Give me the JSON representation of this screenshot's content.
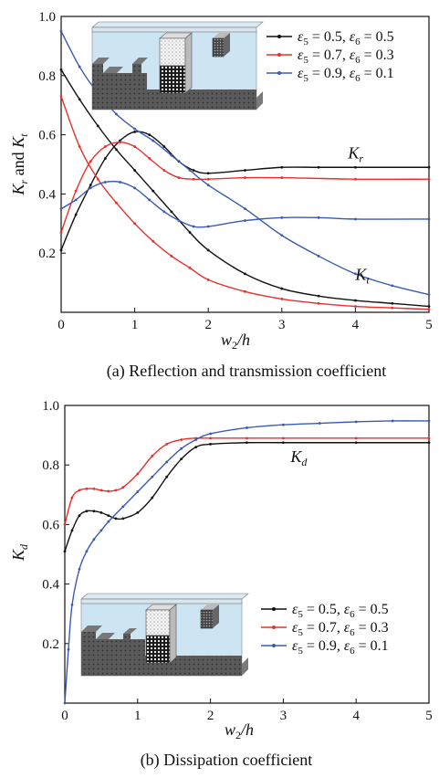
{
  "colors": {
    "black": "#111111",
    "red": "#e8302a",
    "blue": "#3a5bb3"
  },
  "chart_data": [
    {
      "type": "line",
      "caption": "(a) Reflection and transmission coefficient",
      "xlabel": {
        "main": "w",
        "sub": "2",
        "rest": "/h"
      },
      "ylabel": {
        "k1": "K",
        "s1": "r",
        "mid": " and ",
        "k2": "K",
        "s2": "t"
      },
      "xlim": [
        0,
        5
      ],
      "ylim": [
        0,
        1.0
      ],
      "xticks": [
        0,
        1,
        2,
        3,
        4,
        5
      ],
      "yticks": [
        0.2,
        0.4,
        0.6,
        0.8,
        1.0
      ],
      "xtick_labels": [
        "0",
        "1",
        "2",
        "3",
        "4",
        "5"
      ],
      "ytick_labels": [
        "0.2",
        "0.4",
        "0.6",
        "0.8",
        "1.0"
      ],
      "grid": false,
      "legend_position": "top-right",
      "annotations": [
        {
          "text": "K",
          "sub": "r",
          "x": 3.9,
          "y": 0.52
        },
        {
          "text": "K",
          "sub": "t",
          "x": 4.0,
          "y": 0.11
        }
      ],
      "series": [
        {
          "name": "ε5 = 0.5,  ε6 = 0.5",
          "legend": {
            "a": "ε",
            "a_sub": "5",
            "a_val": " = 0.5,  ",
            "b": "ε",
            "b_sub": "6",
            "b_val": " = 0.5"
          },
          "color": "black",
          "group": "Kr",
          "x": [
            0,
            0.2,
            0.4,
            0.6,
            0.8,
            1.0,
            1.2,
            1.4,
            1.6,
            1.8,
            2.0,
            2.5,
            3.0,
            3.5,
            4.0,
            5.0
          ],
          "y": [
            0.21,
            0.33,
            0.43,
            0.52,
            0.58,
            0.61,
            0.6,
            0.56,
            0.51,
            0.48,
            0.47,
            0.48,
            0.49,
            0.49,
            0.49,
            0.49
          ]
        },
        {
          "name": "ε5 = 0.5,  ε6 = 0.5",
          "color": "black",
          "group": "Kt",
          "x": [
            0,
            0.25,
            0.5,
            0.75,
            1.0,
            1.25,
            1.5,
            1.75,
            2.0,
            2.5,
            3.0,
            3.5,
            4.0,
            4.5,
            5.0
          ],
          "y": [
            0.82,
            0.72,
            0.63,
            0.55,
            0.48,
            0.41,
            0.34,
            0.27,
            0.21,
            0.13,
            0.08,
            0.055,
            0.04,
            0.03,
            0.02
          ]
        },
        {
          "name": "ε5 = 0.7,  ε6 = 0.3",
          "legend": {
            "a": "ε",
            "a_sub": "5",
            "a_val": " = 0.7,  ",
            "b": "ε",
            "b_sub": "6",
            "b_val": " = 0.3"
          },
          "color": "red",
          "group": "Kr",
          "x": [
            0,
            0.2,
            0.4,
            0.6,
            0.8,
            1.0,
            1.2,
            1.4,
            1.6,
            1.8,
            2.0,
            2.5,
            3.0,
            4.0,
            5.0
          ],
          "y": [
            0.27,
            0.41,
            0.51,
            0.56,
            0.575,
            0.56,
            0.52,
            0.48,
            0.455,
            0.45,
            0.45,
            0.455,
            0.455,
            0.45,
            0.45
          ]
        },
        {
          "name": "ε5 = 0.7,  ε6 = 0.3",
          "color": "red",
          "group": "Kt",
          "x": [
            0,
            0.25,
            0.5,
            0.75,
            1.0,
            1.25,
            1.5,
            1.75,
            2.0,
            2.5,
            3.0,
            3.5,
            4.0,
            4.5,
            5.0
          ],
          "y": [
            0.73,
            0.56,
            0.45,
            0.37,
            0.3,
            0.24,
            0.19,
            0.15,
            0.11,
            0.07,
            0.045,
            0.03,
            0.02,
            0.015,
            0.01
          ]
        },
        {
          "name": "ε5 = 0.9,  ε6 = 0.1",
          "legend": {
            "a": "ε",
            "a_sub": "5",
            "a_val": " = 0.9,  ",
            "b": "ε",
            "b_sub": "6",
            "b_val": " = 0.1"
          },
          "color": "blue",
          "group": "Kr",
          "x": [
            0,
            0.2,
            0.4,
            0.6,
            0.8,
            1.0,
            1.2,
            1.4,
            1.6,
            1.8,
            2.0,
            2.5,
            3.0,
            3.5,
            4.0,
            5.0
          ],
          "y": [
            0.35,
            0.38,
            0.42,
            0.44,
            0.44,
            0.42,
            0.38,
            0.34,
            0.31,
            0.29,
            0.29,
            0.31,
            0.32,
            0.32,
            0.315,
            0.315
          ]
        },
        {
          "name": "ε5 = 0.9,  ε6 = 0.1",
          "color": "blue",
          "group": "Kt",
          "x": [
            0,
            0.25,
            0.5,
            0.75,
            1.0,
            1.25,
            1.5,
            1.75,
            2.0,
            2.5,
            3.0,
            3.5,
            4.0,
            4.5,
            5.0
          ],
          "y": [
            0.95,
            0.83,
            0.74,
            0.67,
            0.62,
            0.58,
            0.53,
            0.48,
            0.43,
            0.35,
            0.26,
            0.19,
            0.13,
            0.09,
            0.06
          ]
        }
      ]
    },
    {
      "type": "line",
      "caption": "(b) Dissipation coefficient",
      "xlabel": {
        "main": "w",
        "sub": "2",
        "rest": "/h"
      },
      "ylabel": {
        "k1": "K",
        "s1": "d"
      },
      "xlim": [
        0,
        5
      ],
      "ylim": [
        0,
        1.0
      ],
      "xticks": [
        0,
        1,
        2,
        3,
        4,
        5
      ],
      "yticks": [
        0.2,
        0.4,
        0.6,
        0.8,
        1.0
      ],
      "xtick_labels": [
        "0",
        "1",
        "2",
        "3",
        "4",
        "5"
      ],
      "ytick_labels": [
        "0.2",
        "0.4",
        "0.6",
        "0.8",
        "1.0"
      ],
      "grid": false,
      "legend_position": "bottom-right",
      "annotations": [
        {
          "text": "K",
          "sub": "d",
          "x": 3.1,
          "y": 0.81
        }
      ],
      "series": [
        {
          "name": "ε5 = 0.5,  ε6 = 0.5",
          "legend": {
            "a": "ε",
            "a_sub": "5",
            "a_val": " = 0.5,  ",
            "b": "ε",
            "b_sub": "6",
            "b_val": " = 0.5"
          },
          "color": "black",
          "x": [
            0,
            0.1,
            0.2,
            0.3,
            0.4,
            0.5,
            0.6,
            0.7,
            0.8,
            1.0,
            1.2,
            1.4,
            1.6,
            1.8,
            2.0,
            2.5,
            3.0,
            4.0,
            5.0
          ],
          "y": [
            0.51,
            0.58,
            0.63,
            0.645,
            0.645,
            0.64,
            0.63,
            0.62,
            0.62,
            0.64,
            0.69,
            0.76,
            0.82,
            0.86,
            0.87,
            0.875,
            0.875,
            0.875,
            0.875
          ]
        },
        {
          "name": "ε5 = 0.7,  ε6 = 0.3",
          "legend": {
            "a": "ε",
            "a_sub": "5",
            "a_val": " = 0.7,  ",
            "b": "ε",
            "b_sub": "6",
            "b_val": " = 0.3"
          },
          "color": "red",
          "x": [
            0,
            0.1,
            0.2,
            0.3,
            0.4,
            0.5,
            0.6,
            0.7,
            0.8,
            1.0,
            1.2,
            1.4,
            1.6,
            1.8,
            2.0,
            2.5,
            3.0,
            4.0,
            5.0
          ],
          "y": [
            0.6,
            0.69,
            0.715,
            0.72,
            0.72,
            0.715,
            0.712,
            0.715,
            0.725,
            0.77,
            0.83,
            0.87,
            0.885,
            0.89,
            0.89,
            0.89,
            0.89,
            0.89,
            0.89
          ]
        },
        {
          "name": "ε5 = 0.9,  ε6 = 0.1",
          "legend": {
            "a": "ε",
            "a_sub": "5",
            "a_val": " = 0.9,  ",
            "b": "ε",
            "b_sub": "6",
            "b_val": " = 0.1"
          },
          "color": "blue",
          "x": [
            0,
            0.05,
            0.1,
            0.2,
            0.3,
            0.4,
            0.5,
            0.6,
            0.8,
            1.0,
            1.2,
            1.4,
            1.6,
            1.8,
            2.0,
            2.5,
            3.0,
            3.5,
            4.0,
            4.5,
            5.0
          ],
          "y": [
            0.0,
            0.18,
            0.33,
            0.45,
            0.51,
            0.55,
            0.58,
            0.61,
            0.66,
            0.71,
            0.76,
            0.81,
            0.855,
            0.885,
            0.905,
            0.925,
            0.935,
            0.94,
            0.945,
            0.948,
            0.948
          ]
        }
      ]
    }
  ]
}
